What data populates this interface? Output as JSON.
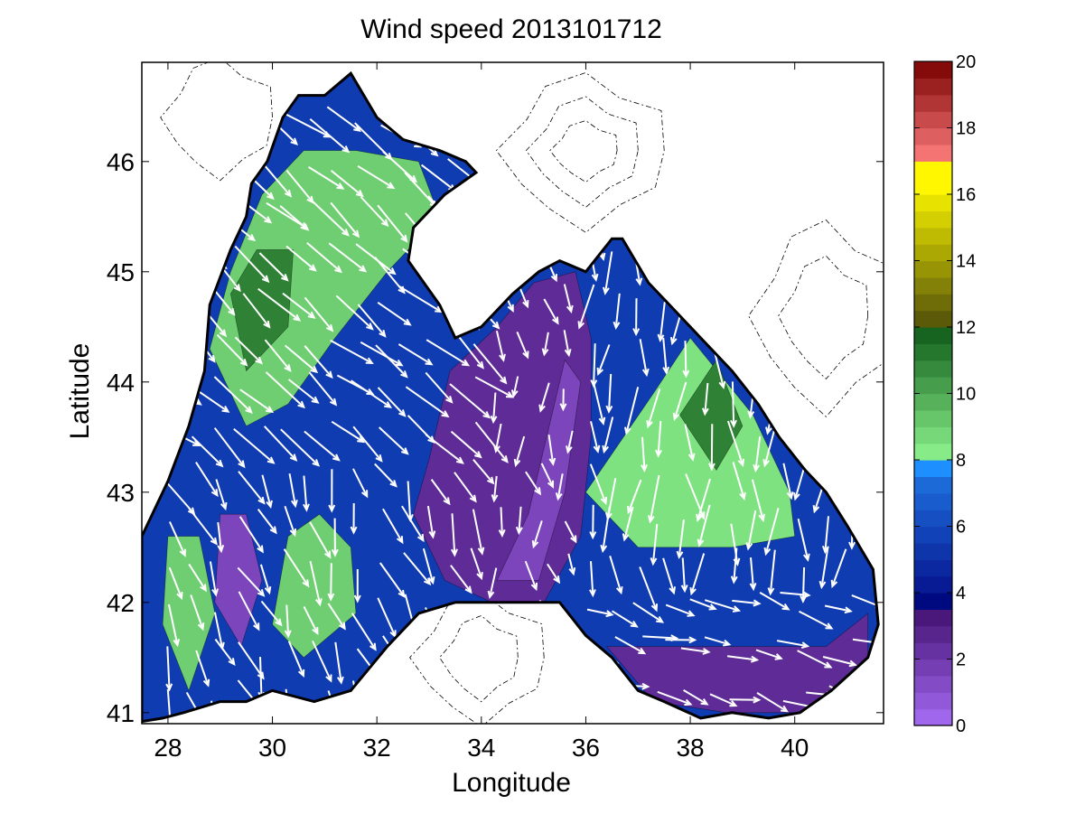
{
  "title": "Wind speed 2013101712",
  "axes": {
    "xlabel": "Longitude",
    "ylabel": "Latitude",
    "xlim": [
      27.5,
      41.7
    ],
    "ylim": [
      40.9,
      46.9
    ],
    "xticks": [
      "28",
      "30",
      "32",
      "34",
      "36",
      "38",
      "40"
    ],
    "yticks": [
      "41",
      "42",
      "43",
      "44",
      "45",
      "46"
    ]
  },
  "colorbar": {
    "ticks": [
      "0",
      "2",
      "4",
      "6",
      "8",
      "10",
      "12",
      "14",
      "16",
      "18",
      "20"
    ],
    "range": [
      0,
      20
    ],
    "bands": [
      {
        "from": 0,
        "to": 3.5,
        "bottom": "#a76cf5",
        "top": "#421170"
      },
      {
        "from": 3.5,
        "to": 4,
        "bottom": "#000a80",
        "top": "#000a80"
      },
      {
        "from": 4,
        "to": 7.5,
        "bottom": "#06158f",
        "top": "#1e6fde"
      },
      {
        "from": 7.5,
        "to": 8,
        "bottom": "#1e8fff",
        "top": "#1e8fff"
      },
      {
        "from": 8,
        "to": 12,
        "bottom": "#8ff58f",
        "top": "#0e5a17"
      },
      {
        "from": 12,
        "to": 16,
        "bottom": "#50500a",
        "top": "#f2ec00"
      },
      {
        "from": 16,
        "to": 17,
        "bottom": "#fff700",
        "top": "#fff700"
      },
      {
        "from": 17,
        "to": 20,
        "bottom": "#ff7f7f",
        "top": "#7a0000"
      }
    ]
  },
  "chart_data": {
    "type": "heatmap",
    "title": "Wind speed 2013101712",
    "xlabel": "Longitude",
    "ylabel": "Latitude",
    "xlim": [
      27.5,
      41.7
    ],
    "ylim": [
      40.9,
      46.9
    ],
    "value_range": [
      0,
      20
    ],
    "grid": false,
    "coastline": [
      [
        27.5,
        42.6
      ],
      [
        28.0,
        43.1
      ],
      [
        28.4,
        43.6
      ],
      [
        28.7,
        44.1
      ],
      [
        28.8,
        44.7
      ],
      [
        29.2,
        45.2
      ],
      [
        29.5,
        45.5
      ],
      [
        29.6,
        45.8
      ],
      [
        29.9,
        46.0
      ],
      [
        30.2,
        46.4
      ],
      [
        30.5,
        46.6
      ],
      [
        31.0,
        46.6
      ],
      [
        31.5,
        46.8
      ],
      [
        32.0,
        46.4
      ],
      [
        32.5,
        46.2
      ],
      [
        33.2,
        46.1
      ],
      [
        33.7,
        46.0
      ],
      [
        33.9,
        45.9
      ],
      [
        33.3,
        45.7
      ],
      [
        32.7,
        45.4
      ],
      [
        32.6,
        45.1
      ],
      [
        33.2,
        44.7
      ],
      [
        33.5,
        44.4
      ],
      [
        34.0,
        44.5
      ],
      [
        34.6,
        44.8
      ],
      [
        35.1,
        45.0
      ],
      [
        35.5,
        45.1
      ],
      [
        36.0,
        45.0
      ],
      [
        36.5,
        45.3
      ],
      [
        36.7,
        45.3
      ],
      [
        37.2,
        44.9
      ],
      [
        37.6,
        44.7
      ],
      [
        38.2,
        44.4
      ],
      [
        38.8,
        44.1
      ],
      [
        39.3,
        43.8
      ],
      [
        39.7,
        43.5
      ],
      [
        40.2,
        43.2
      ],
      [
        40.6,
        43.0
      ],
      [
        41.0,
        42.7
      ],
      [
        41.5,
        42.3
      ],
      [
        41.6,
        41.8
      ],
      [
        41.4,
        41.5
      ],
      [
        40.7,
        41.2
      ],
      [
        40.1,
        41.0
      ],
      [
        39.5,
        40.95
      ],
      [
        38.8,
        41.0
      ],
      [
        38.2,
        40.95
      ],
      [
        37.5,
        41.1
      ],
      [
        37.0,
        41.2
      ],
      [
        36.5,
        41.5
      ],
      [
        36.0,
        41.7
      ],
      [
        35.5,
        42.0
      ],
      [
        35.0,
        42.0
      ],
      [
        34.2,
        42.0
      ],
      [
        33.5,
        42.0
      ],
      [
        32.8,
        41.9
      ],
      [
        32.2,
        41.6
      ],
      [
        31.5,
        41.2
      ],
      [
        30.8,
        41.1
      ],
      [
        30.0,
        41.2
      ],
      [
        29.5,
        41.1
      ],
      [
        29.0,
        41.1
      ],
      [
        28.3,
        41.0
      ],
      [
        27.9,
        40.95
      ],
      [
        27.5,
        40.92
      ]
    ],
    "speed_zones": [
      {
        "value": 9,
        "polygon": [
          [
            29.5,
            43.6
          ],
          [
            28.8,
            44.3
          ],
          [
            29.2,
            45.0
          ],
          [
            29.8,
            45.7
          ],
          [
            30.6,
            46.1
          ],
          [
            31.6,
            46.1
          ],
          [
            32.8,
            46.0
          ],
          [
            33.2,
            45.5
          ],
          [
            32.2,
            45.0
          ],
          [
            31.2,
            44.4
          ],
          [
            30.3,
            43.8
          ]
        ]
      },
      {
        "value": 11,
        "polygon": [
          [
            29.5,
            44.1
          ],
          [
            29.2,
            44.8
          ],
          [
            29.7,
            45.2
          ],
          [
            30.4,
            45.2
          ],
          [
            30.3,
            44.5
          ]
        ]
      },
      {
        "value": 8.5,
        "polygon": [
          [
            37.0,
            42.5
          ],
          [
            36.0,
            43.0
          ],
          [
            37.3,
            43.9
          ],
          [
            38.0,
            44.4
          ],
          [
            39.2,
            43.7
          ],
          [
            39.9,
            43.0
          ],
          [
            40.0,
            42.6
          ],
          [
            38.8,
            42.5
          ]
        ]
      },
      {
        "value": 11,
        "polygon": [
          [
            37.8,
            43.7
          ],
          [
            38.5,
            44.2
          ],
          [
            39.0,
            43.6
          ],
          [
            38.5,
            43.2
          ]
        ]
      },
      {
        "value": 9,
        "polygon": [
          [
            30.3,
            42.6
          ],
          [
            30.0,
            41.8
          ],
          [
            30.6,
            41.5
          ],
          [
            31.6,
            41.9
          ],
          [
            31.5,
            42.5
          ],
          [
            30.9,
            42.8
          ]
        ]
      },
      {
        "value": 9,
        "polygon": [
          [
            28.0,
            42.6
          ],
          [
            27.9,
            41.8
          ],
          [
            28.4,
            41.2
          ],
          [
            28.9,
            41.9
          ],
          [
            28.6,
            42.6
          ]
        ]
      },
      {
        "value": 2.5,
        "polygon": [
          [
            33.4,
            44.1
          ],
          [
            33.0,
            43.3
          ],
          [
            32.7,
            42.8
          ],
          [
            33.3,
            42.2
          ],
          [
            34.2,
            42.0
          ],
          [
            35.2,
            42.0
          ],
          [
            35.9,
            42.6
          ],
          [
            36.1,
            43.5
          ],
          [
            36.1,
            44.4
          ],
          [
            35.8,
            45.0
          ],
          [
            35.0,
            44.9
          ],
          [
            34.3,
            44.5
          ]
        ]
      },
      {
        "value": 1.5,
        "polygon": [
          [
            34.3,
            42.2
          ],
          [
            34.9,
            42.8
          ],
          [
            35.3,
            43.6
          ],
          [
            35.6,
            44.2
          ],
          [
            35.9,
            44.0
          ],
          [
            35.6,
            43.0
          ],
          [
            35.1,
            42.2
          ]
        ]
      },
      {
        "value": 2.5,
        "polygon": [
          [
            36.4,
            41.6
          ],
          [
            37.6,
            41.6
          ],
          [
            39.2,
            41.6
          ],
          [
            40.6,
            41.6
          ],
          [
            41.4,
            41.9
          ],
          [
            41.4,
            41.4
          ],
          [
            40.3,
            41.0
          ],
          [
            38.7,
            41.0
          ],
          [
            37.3,
            41.1
          ]
        ]
      },
      {
        "value": 1.5,
        "polygon": [
          [
            29.0,
            42.8
          ],
          [
            28.9,
            42.0
          ],
          [
            29.4,
            41.6
          ],
          [
            29.8,
            42.2
          ],
          [
            29.5,
            42.8
          ]
        ]
      }
    ]
  }
}
